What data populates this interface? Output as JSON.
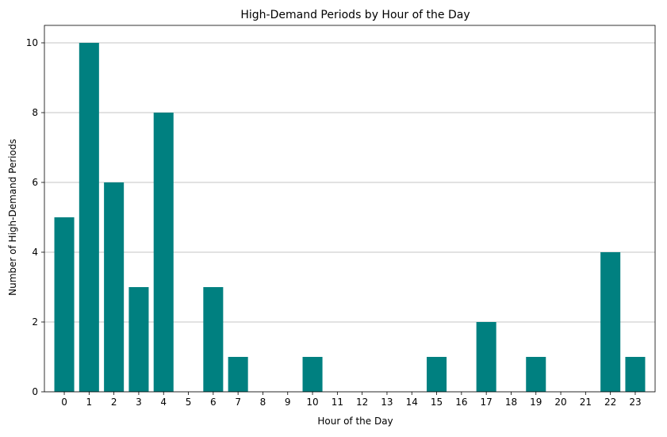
{
  "chart_data": {
    "type": "bar",
    "title": "High-Demand Periods by Hour of the Day",
    "xlabel": "Hour of the Day",
    "ylabel": "Number of High-Demand Periods",
    "categories": [
      "0",
      "1",
      "2",
      "3",
      "4",
      "5",
      "6",
      "7",
      "8",
      "9",
      "10",
      "11",
      "12",
      "13",
      "14",
      "15",
      "16",
      "17",
      "18",
      "19",
      "20",
      "21",
      "22",
      "23"
    ],
    "values": [
      5,
      10,
      6,
      3,
      8,
      0,
      3,
      1,
      0,
      0,
      1,
      0,
      0,
      0,
      0,
      1,
      0,
      2,
      0,
      1,
      0,
      0,
      4,
      1
    ],
    "ylim": [
      0,
      10.5
    ],
    "yticks": [
      0,
      2,
      4,
      6,
      8,
      10
    ],
    "grid": "y-axis only",
    "bar_color": "#008080",
    "grid_color": "#b0b0b0"
  }
}
